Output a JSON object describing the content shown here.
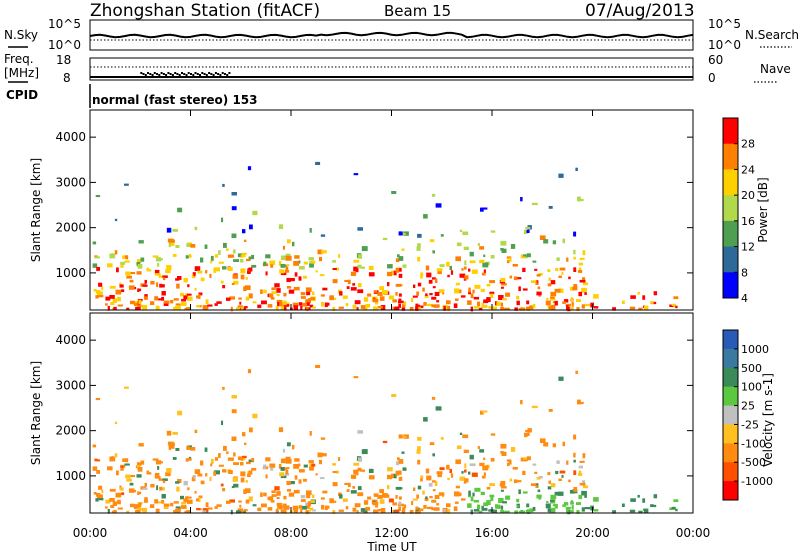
{
  "header": {
    "title": "Zhongshan Station (fitACF)",
    "beam": "Beam 15",
    "date": "07/Aug/2013"
  },
  "chart_data": [
    {
      "type": "line",
      "name": "noise-panel",
      "left_label": "N.Sky",
      "right_label": "N.Search",
      "left_ticks": [
        "10^5",
        "10^0"
      ],
      "right_ticks": [
        "10^5",
        "10^0"
      ]
    },
    {
      "type": "line",
      "name": "frequency-nave-panel",
      "left_label_1": "Freq.",
      "left_label_2": "[MHz]",
      "left_ticks": [
        "18",
        "8"
      ],
      "right_label": "Nave",
      "right_ticks": [
        "60",
        "0"
      ]
    },
    {
      "type": "table",
      "name": "cpid-strip",
      "label": "CPID",
      "value": "normal (fast stereo) 153"
    },
    {
      "type": "heatmap",
      "name": "power-panel",
      "ylabel": "Slant Range [km]",
      "yticks": [
        "4000",
        "3000",
        "2000",
        "1000"
      ],
      "ylim": [
        180,
        4600
      ],
      "colorbar": {
        "label": "Power [dB]",
        "ticks": [
          "28",
          "24",
          "20",
          "16",
          "12",
          "8",
          "4"
        ],
        "colors": [
          "#ff0000",
          "#ff7f00",
          "#ffd000",
          "#b2d84c",
          "#4ea050",
          "#2d6a9a",
          "#0000ff"
        ]
      }
    },
    {
      "type": "heatmap",
      "name": "velocity-panel",
      "ylabel": "Slant Range [km]",
      "yticks": [
        "4000",
        "3000",
        "2000",
        "1000"
      ],
      "ylim": [
        180,
        4600
      ],
      "colorbar": {
        "label": "Velocity [m s-1]",
        "ticks": [
          "1000",
          "500",
          "100",
          "25",
          "-25",
          "-100",
          "-500",
          "-1000"
        ],
        "colors": [
          "#2a5ab8",
          "#3a7aa0",
          "#3a8a5a",
          "#5cc840",
          "#c0c0c0",
          "#ffc020",
          "#ff8c10",
          "#ff5000",
          "#ff0000"
        ]
      }
    }
  ],
  "xaxis": {
    "label": "Time UT",
    "ticks": [
      "00:00",
      "04:00",
      "08:00",
      "12:00",
      "16:00",
      "20:00",
      "00:00"
    ]
  },
  "colors": {
    "frame": "#000000"
  }
}
